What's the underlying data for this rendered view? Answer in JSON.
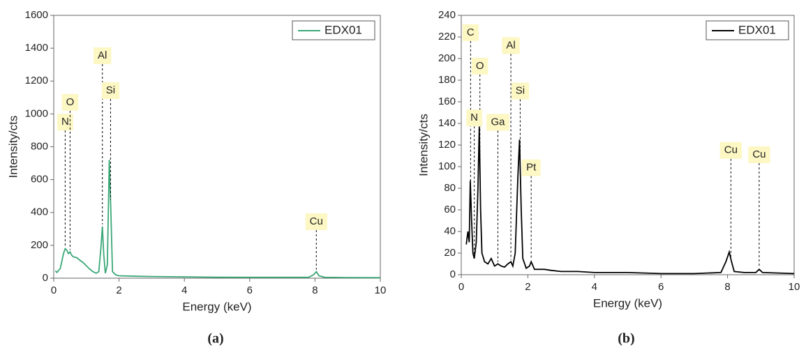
{
  "chart_data": [
    {
      "type": "line",
      "caption": "(a)",
      "xlabel": "Energy (keV)",
      "ylabel": "Intensity/cts",
      "xlim": [
        0,
        10
      ],
      "xticks": [
        0,
        2,
        4,
        6,
        8,
        10
      ],
      "ylim": [
        0,
        1600
      ],
      "yticks": [
        0,
        200,
        400,
        600,
        800,
        1000,
        1200,
        1400,
        1600
      ],
      "legend": "upper right",
      "x": [
        0.05,
        0.1,
        0.2,
        0.3,
        0.35,
        0.4,
        0.45,
        0.5,
        0.55,
        0.6,
        0.7,
        0.8,
        0.9,
        1.0,
        1.1,
        1.2,
        1.3,
        1.38,
        1.45,
        1.49,
        1.53,
        1.58,
        1.64,
        1.7,
        1.75,
        1.8,
        1.9,
        2.0,
        2.5,
        3,
        4,
        5,
        6,
        7,
        7.8,
        7.95,
        8.04,
        8.12,
        8.3,
        9,
        10
      ],
      "series": [
        {
          "name": "EDX01",
          "color": "#3aa776",
          "values": [
            45,
            35,
            60,
            150,
            180,
            170,
            150,
            160,
            140,
            130,
            125,
            110,
            95,
            75,
            55,
            40,
            30,
            40,
            200,
            315,
            150,
            30,
            80,
            720,
            400,
            40,
            20,
            15,
            12,
            10,
            8,
            6,
            5,
            5,
            5,
            20,
            40,
            15,
            5,
            4,
            3
          ]
        }
      ],
      "annotations": [
        {
          "text": "N",
          "x": 0.35,
          "y": 950
        },
        {
          "text": "O",
          "x": 0.5,
          "y": 1070
        },
        {
          "text": "Al",
          "x": 1.49,
          "y": 1354
        },
        {
          "text": "Si",
          "x": 1.74,
          "y": 1142
        },
        {
          "text": "Cu",
          "x": 8.04,
          "y": 344
        }
      ]
    },
    {
      "type": "line",
      "caption": "(b)",
      "xlabel": "Energy (keV)",
      "ylabel": "Intensity/cts",
      "xlim": [
        0,
        10
      ],
      "xticks": [
        0,
        2,
        4,
        6,
        8,
        10
      ],
      "ylim": [
        0,
        240
      ],
      "yticks": [
        0,
        20,
        40,
        60,
        80,
        100,
        120,
        140,
        160,
        180,
        200,
        220,
        240
      ],
      "legend": "upper right",
      "x": [
        0.15,
        0.2,
        0.24,
        0.27,
        0.31,
        0.35,
        0.39,
        0.45,
        0.5,
        0.54,
        0.58,
        0.62,
        0.7,
        0.8,
        0.9,
        1.0,
        1.1,
        1.2,
        1.3,
        1.4,
        1.49,
        1.55,
        1.62,
        1.7,
        1.75,
        1.8,
        1.85,
        1.95,
        2.05,
        2.1,
        2.2,
        2.5,
        2.7,
        3,
        3.5,
        4,
        5,
        6,
        7,
        7.8,
        7.95,
        8.05,
        8.12,
        8.2,
        8.5,
        8.85,
        8.95,
        9.05,
        10
      ],
      "series": [
        {
          "name": "EDX01",
          "color": "#000000",
          "values": [
            28,
            40,
            30,
            87,
            50,
            20,
            15,
            30,
            80,
            137,
            60,
            20,
            12,
            10,
            15,
            8,
            10,
            8,
            7,
            10,
            12,
            8,
            20,
            90,
            125,
            60,
            15,
            6,
            8,
            12,
            5,
            5,
            4,
            3,
            3,
            2,
            2,
            1,
            1,
            2,
            12,
            21,
            12,
            3,
            2,
            2,
            5,
            2,
            1
          ]
        }
      ],
      "annotations": [
        {
          "text": "C",
          "x": 0.28,
          "y": 224
        },
        {
          "text": "O",
          "x": 0.56,
          "y": 193
        },
        {
          "text": "N",
          "x": 0.39,
          "y": 145
        },
        {
          "text": "Ga",
          "x": 1.1,
          "y": 141
        },
        {
          "text": "Al",
          "x": 1.49,
          "y": 212
        },
        {
          "text": "Si",
          "x": 1.77,
          "y": 170
        },
        {
          "text": "Pt",
          "x": 2.1,
          "y": 99
        },
        {
          "text": "Cu",
          "x": 8.1,
          "y": 115
        },
        {
          "text": "Cu",
          "x": 8.95,
          "y": 111
        }
      ]
    }
  ]
}
